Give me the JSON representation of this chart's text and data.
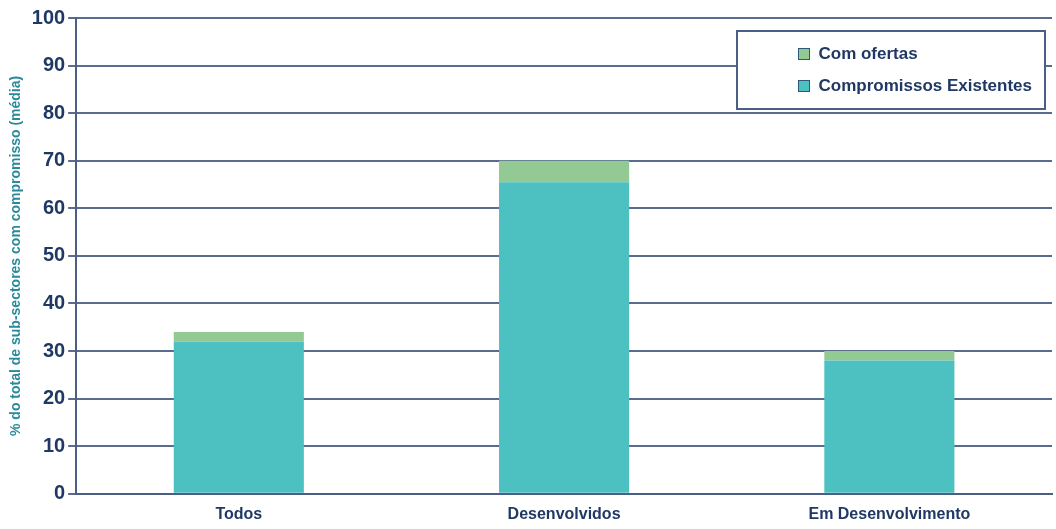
{
  "chart_data": {
    "type": "bar",
    "stacked": true,
    "ylabel": "% do total de sub-sectores com compromisso (média)",
    "categories": [
      "Todos",
      "Desenvolvidos",
      "Em Desenvolvimento"
    ],
    "series": [
      {
        "name": "Compromissos Existentes",
        "color": "#4dc1c1",
        "values": [
          32,
          65.5,
          28
        ]
      },
      {
        "name": "Com ofertas",
        "color": "#93c993",
        "values": [
          2,
          4.5,
          2
        ]
      }
    ],
    "ylim": [
      0,
      100
    ],
    "yticks": [
      0,
      10,
      20,
      30,
      40,
      50,
      60,
      70,
      80,
      90,
      100
    ],
    "grid": "y",
    "legend": "top right"
  }
}
